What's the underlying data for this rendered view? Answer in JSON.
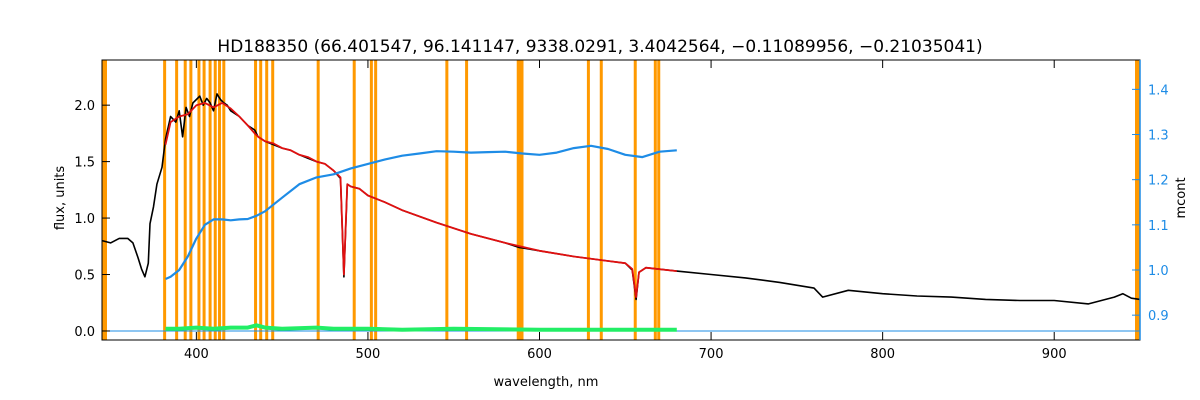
{
  "chart_data": {
    "type": "line",
    "title": "HD188350   (66.401547, 96.141147, 9338.0291, 3.4042564, −0.11089956, −0.21035041)",
    "xlabel": "wavelength, nm",
    "ylabel": "flux, units",
    "y2label": "mcont",
    "xlim": [
      345,
      950
    ],
    "ylim": [
      -0.08,
      2.4
    ],
    "y2lim": [
      0.845,
      1.465
    ],
    "xticks": [
      400,
      500,
      600,
      700,
      800,
      900
    ],
    "yticks": [
      0.0,
      0.5,
      1.0,
      1.5,
      2.0
    ],
    "y2ticks": [
      0.9,
      1.0,
      1.1,
      1.2,
      1.3,
      1.4
    ],
    "ytick_labels": [
      "0.0",
      "0.5",
      "1.0",
      "1.5",
      "2.0"
    ],
    "y2tick_labels": [
      "0.9",
      "1.0",
      "1.1",
      "1.2",
      "1.3",
      "1.4"
    ],
    "colors": {
      "observed": "#000000",
      "model": "#e01010",
      "mcont": "#1e8ce6",
      "residual": "#22ee66",
      "masks": "#ff9900",
      "zero_line": "#1e8ce6",
      "right_axis": "#1e8ce6"
    },
    "mask_lines_nm": [
      381.5,
      388.5,
      393.5,
      396.8,
      401.5,
      404.5,
      408.0,
      411.0,
      413.5,
      416.0,
      434.5,
      437.5,
      441.0,
      444.5,
      471.0,
      492.0,
      502.0,
      504.5,
      546.0,
      557.5,
      587.6,
      589.0,
      589.8,
      628.5,
      636.0,
      655.8,
      667.5,
      669.5
    ],
    "series": [
      {
        "role": "observed",
        "x": [
          345,
          350,
          355,
          360,
          363,
          366,
          368,
          370,
          372,
          373,
          375,
          377,
          380,
          382,
          385,
          388,
          390,
          392,
          394,
          396,
          398,
          400,
          402,
          404,
          406,
          408,
          410,
          412,
          414,
          416,
          418,
          420,
          425,
          430,
          434,
          436,
          438,
          440,
          445,
          450,
          455,
          460,
          465,
          470,
          475,
          480,
          484,
          486,
          488,
          490,
          495,
          500,
          510,
          520,
          540,
          560,
          580,
          588,
          592,
          600,
          620,
          640,
          650,
          654,
          656.3,
          658,
          662,
          680,
          700,
          720,
          740,
          760,
          765,
          780,
          800,
          820,
          840,
          860,
          880,
          900,
          920,
          935,
          940,
          945,
          950
        ],
        "y": [
          0.8,
          0.78,
          0.82,
          0.82,
          0.78,
          0.65,
          0.55,
          0.48,
          0.6,
          0.95,
          1.1,
          1.3,
          1.45,
          1.7,
          1.9,
          1.85,
          1.95,
          1.72,
          1.98,
          1.9,
          2.02,
          2.05,
          2.08,
          2.0,
          2.06,
          2.02,
          1.95,
          2.1,
          2.05,
          2.02,
          2.0,
          1.95,
          1.9,
          1.82,
          1.78,
          1.72,
          1.7,
          1.68,
          1.65,
          1.62,
          1.6,
          1.56,
          1.53,
          1.5,
          1.48,
          1.42,
          1.35,
          0.48,
          1.3,
          1.28,
          1.26,
          1.2,
          1.14,
          1.07,
          0.96,
          0.86,
          0.78,
          0.74,
          0.73,
          0.71,
          0.66,
          0.62,
          0.6,
          0.54,
          0.28,
          0.52,
          0.56,
          0.53,
          0.5,
          0.47,
          0.43,
          0.38,
          0.3,
          0.36,
          0.33,
          0.31,
          0.3,
          0.28,
          0.27,
          0.27,
          0.24,
          0.3,
          0.33,
          0.29,
          0.28
        ]
      },
      {
        "role": "model",
        "x": [
          382,
          385,
          390,
          395,
          400,
          405,
          410,
          415,
          420,
          425,
          430,
          434,
          436,
          440,
          445,
          450,
          455,
          460,
          465,
          470,
          475,
          480,
          484,
          486,
          488,
          490,
          495,
          500,
          510,
          520,
          540,
          560,
          580,
          600,
          620,
          640,
          650,
          654,
          656.3,
          658,
          662,
          680
        ],
        "y": [
          1.65,
          1.85,
          1.9,
          1.92,
          2.0,
          2.02,
          1.98,
          2.02,
          1.97,
          1.9,
          1.82,
          1.75,
          1.72,
          1.68,
          1.66,
          1.62,
          1.6,
          1.56,
          1.54,
          1.5,
          1.48,
          1.42,
          1.36,
          0.5,
          1.3,
          1.28,
          1.26,
          1.2,
          1.14,
          1.07,
          0.96,
          0.86,
          0.78,
          0.71,
          0.66,
          0.62,
          0.6,
          0.55,
          0.3,
          0.52,
          0.56,
          0.53
        ]
      },
      {
        "role": "mcont",
        "axis": "right",
        "x": [
          382,
          385,
          390,
          395,
          400,
          405,
          410,
          415,
          420,
          425,
          430,
          435,
          440,
          450,
          460,
          470,
          480,
          490,
          500,
          510,
          520,
          530,
          540,
          550,
          560,
          570,
          580,
          590,
          600,
          610,
          620,
          630,
          640,
          650,
          660,
          670,
          680
        ],
        "y": [
          0.98,
          0.985,
          1.0,
          1.03,
          1.07,
          1.1,
          1.112,
          1.112,
          1.11,
          1.112,
          1.113,
          1.12,
          1.13,
          1.16,
          1.19,
          1.205,
          1.212,
          1.225,
          1.235,
          1.245,
          1.253,
          1.258,
          1.263,
          1.262,
          1.26,
          1.261,
          1.262,
          1.258,
          1.255,
          1.26,
          1.27,
          1.275,
          1.268,
          1.255,
          1.25,
          1.262,
          1.265
        ]
      },
      {
        "role": "residual",
        "x": [
          382,
          390,
          400,
          410,
          420,
          430,
          435,
          440,
          450,
          470,
          480,
          500,
          520,
          550,
          600,
          650,
          680
        ],
        "y": [
          0.02,
          0.02,
          0.03,
          0.02,
          0.03,
          0.03,
          0.05,
          0.03,
          0.02,
          0.03,
          0.02,
          0.02,
          0.01,
          0.02,
          0.01,
          0.01,
          0.01
        ]
      }
    ]
  }
}
